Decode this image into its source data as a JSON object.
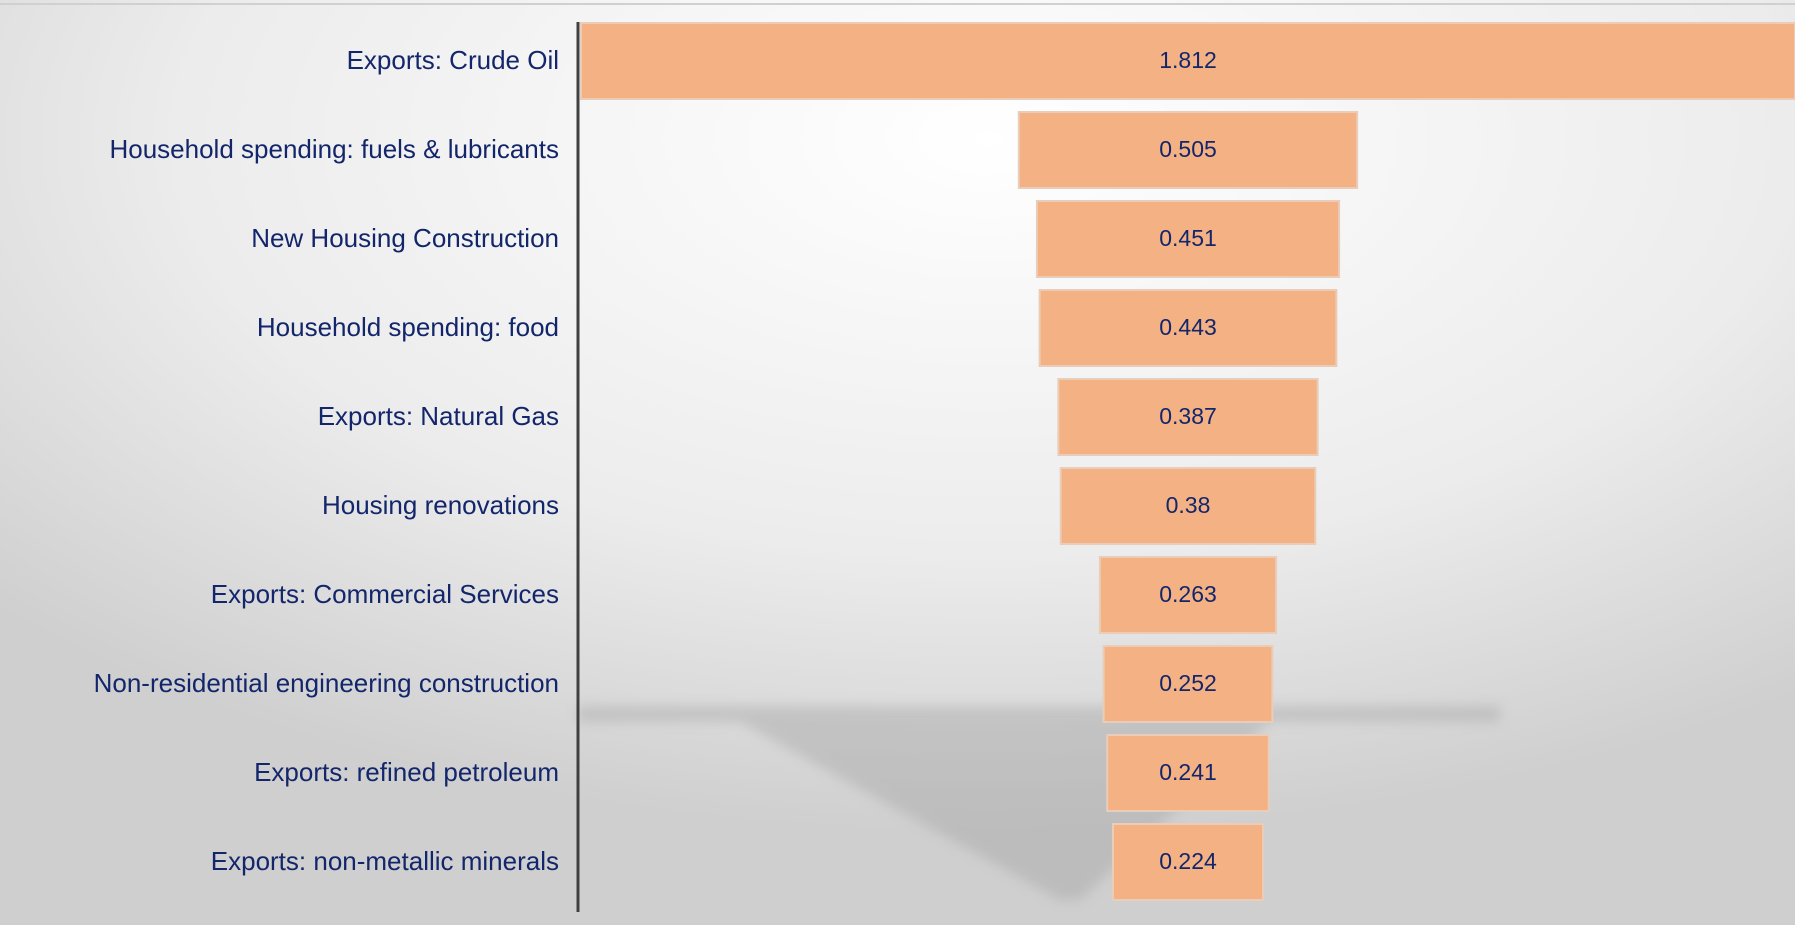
{
  "chart_data": {
    "type": "funnel",
    "categories": [
      "Exports: Crude Oil",
      "Household spending: fuels & lubricants",
      "New Housing Construction",
      "Household spending: food",
      "Exports: Natural Gas",
      "Housing renovations",
      "Exports: Commercial Services",
      "Non-residential engineering construction",
      "Exports: refined petroleum",
      "Exports: non-metallic minerals"
    ],
    "values": [
      1.812,
      0.505,
      0.451,
      0.443,
      0.387,
      0.38,
      0.263,
      0.252,
      0.241,
      0.224
    ],
    "color": "#f4b183"
  }
}
